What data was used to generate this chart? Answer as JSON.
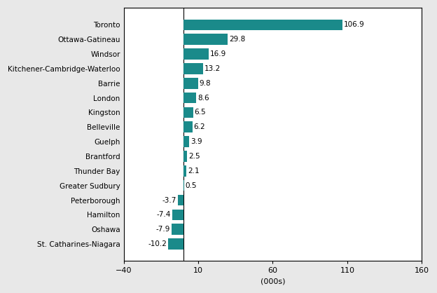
{
  "categories": [
    "St. Catharines-Niagara",
    "Oshawa",
    "Hamilton",
    "Peterborough",
    "Greater Sudbury",
    "Thunder Bay",
    "Brantford",
    "Guelph",
    "Belleville",
    "Kingston",
    "London",
    "Barrie",
    "Kitchener-Cambridge-Waterloo",
    "Windsor",
    "Ottawa-Gatineau",
    "Toronto"
  ],
  "values": [
    -10.2,
    -7.9,
    -7.4,
    -3.7,
    0.5,
    2.1,
    2.5,
    3.9,
    6.2,
    6.5,
    8.6,
    9.8,
    13.2,
    16.9,
    29.8,
    106.9
  ],
  "bar_color": "#1a8a8a",
  "xlabel": "(000s)",
  "xlim": [
    -40,
    160
  ],
  "xticks": [
    -40,
    10,
    60,
    110,
    160
  ],
  "bar_height": 0.75,
  "label_fontsize": 7.5,
  "tick_fontsize": 8.0,
  "figure_width": 6.24,
  "figure_height": 4.18,
  "dpi": 100,
  "fig_bg_color": "#e8e8e8",
  "plot_bg_color": "#ffffff"
}
